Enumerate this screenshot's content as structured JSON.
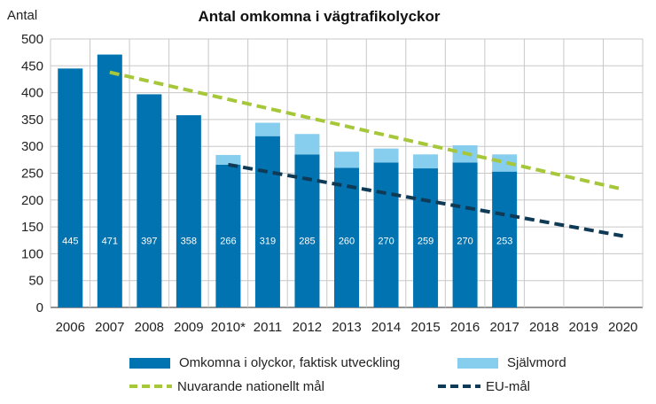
{
  "chart_data": {
    "type": "bar",
    "title": "Antal omkomna i vägtrafikolyckor",
    "ylabel": "Antal",
    "xlabel": "",
    "ylim": [
      0,
      500
    ],
    "yticks": [
      0,
      50,
      100,
      150,
      200,
      250,
      300,
      350,
      400,
      450,
      500
    ],
    "grid": true,
    "categories": [
      "2006",
      "2007",
      "2008",
      "2009",
      "2010*",
      "2011",
      "2012",
      "2013",
      "2014",
      "2015",
      "2016",
      "2017",
      "2018",
      "2019",
      "2020"
    ],
    "series": [
      {
        "name": "Omkomna i olyckor, faktisk utveckling",
        "type": "bar",
        "color": "#0073b0",
        "values": [
          445,
          471,
          397,
          358,
          266,
          319,
          285,
          260,
          270,
          259,
          270,
          253,
          null,
          null,
          null
        ],
        "labels": [
          "445",
          "471",
          "397",
          "358",
          "266",
          "319",
          "285",
          "260",
          "270",
          "259",
          "270",
          "253",
          "",
          "",
          ""
        ]
      },
      {
        "name": "Självmord",
        "type": "bar-stacked",
        "color": "#86cdee",
        "values": [
          null,
          null,
          null,
          null,
          18,
          25,
          38,
          30,
          26,
          26,
          32,
          32,
          null,
          null,
          null
        ]
      },
      {
        "name": "Nuvarande nationellt mål",
        "type": "line-dashed",
        "color": "#a7c73b",
        "x": [
          "2007",
          "2020"
        ],
        "values": [
          438,
          220
        ]
      },
      {
        "name": "EU-mål",
        "type": "line-dashed",
        "color": "#0f3a56",
        "x": [
          "2010*",
          "2020"
        ],
        "values": [
          266,
          133
        ]
      }
    ],
    "legend_position": "bottom"
  }
}
